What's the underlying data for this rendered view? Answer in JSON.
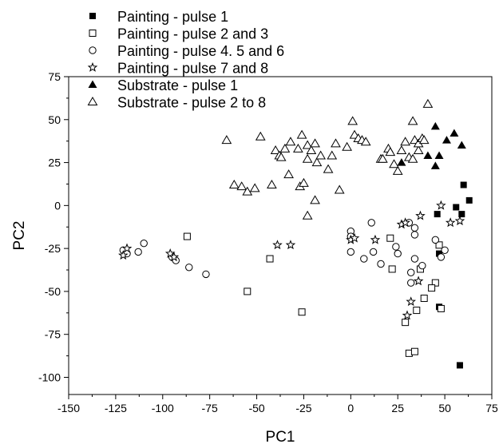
{
  "chart_data": {
    "type": "scatter",
    "title": "",
    "xlabel": "PC1",
    "ylabel": "PC2",
    "xlim": [
      -150,
      75
    ],
    "ylim": [
      -110,
      75
    ],
    "xticks": [
      -150,
      -125,
      -100,
      -75,
      -50,
      -25,
      0,
      25,
      50,
      75
    ],
    "yticks": [
      75,
      50,
      25,
      0,
      -25,
      -50,
      -75,
      -100
    ],
    "grid": false,
    "legend_position": "top-left",
    "series": [
      {
        "name": "Painting - pulse 1",
        "marker": "filled-square",
        "color": "#000000",
        "points": [
          [
            60,
            12
          ],
          [
            63,
            3
          ],
          [
            56,
            -1
          ],
          [
            59,
            -5
          ],
          [
            46,
            -5
          ],
          [
            47,
            -28
          ],
          [
            47,
            -59
          ],
          [
            58,
            -93
          ]
        ]
      },
      {
        "name": "Painting - pulse 2 and 3",
        "marker": "open-square",
        "color": "#000000",
        "points": [
          [
            -87,
            -18
          ],
          [
            -43,
            -31
          ],
          [
            -55,
            -50
          ],
          [
            -26,
            -62
          ],
          [
            21,
            -19
          ],
          [
            22,
            -37
          ],
          [
            29,
            -68
          ],
          [
            31,
            -86
          ],
          [
            34,
            -85
          ],
          [
            35,
            -61
          ],
          [
            37,
            -37
          ],
          [
            39,
            -54
          ],
          [
            45,
            -45
          ],
          [
            43,
            -48
          ],
          [
            48,
            -60
          ],
          [
            47,
            -23
          ]
        ]
      },
      {
        "name": "Painting - pulse 4. 5 and 6",
        "marker": "open-circle",
        "color": "#000000",
        "points": [
          [
            -121,
            -26
          ],
          [
            -119,
            -28
          ],
          [
            -110,
            -22
          ],
          [
            -113,
            -27
          ],
          [
            -95,
            -30
          ],
          [
            -93,
            -32
          ],
          [
            -86,
            -36
          ],
          [
            -77,
            -40
          ],
          [
            0,
            -15
          ],
          [
            0,
            -18
          ],
          [
            0,
            -27
          ],
          [
            7,
            -31
          ],
          [
            12,
            -27
          ],
          [
            16,
            -34
          ],
          [
            24,
            -24
          ],
          [
            25,
            -28
          ],
          [
            31,
            -10
          ],
          [
            32,
            -39
          ],
          [
            32,
            -45
          ],
          [
            34,
            -13
          ],
          [
            34,
            -17
          ],
          [
            34,
            -31
          ],
          [
            38,
            -35
          ],
          [
            45,
            -20
          ],
          [
            48,
            -30
          ],
          [
            50,
            -26
          ],
          [
            11,
            -10
          ]
        ]
      },
      {
        "name": "Painting - pulse 7 and 8",
        "marker": "open-star",
        "color": "#000000",
        "points": [
          [
            -121,
            -29
          ],
          [
            -119,
            -25
          ],
          [
            -96,
            -28
          ],
          [
            -94,
            -30
          ],
          [
            -39,
            -23
          ],
          [
            -32,
            -23
          ],
          [
            0,
            -20
          ],
          [
            2,
            -19
          ],
          [
            13,
            -20
          ],
          [
            27,
            -11
          ],
          [
            29,
            -10
          ],
          [
            30,
            -64
          ],
          [
            32,
            -56
          ],
          [
            36,
            -44
          ],
          [
            37,
            -6
          ],
          [
            48,
            0
          ],
          [
            53,
            -10
          ],
          [
            58,
            -9
          ]
        ]
      },
      {
        "name": "Substrate - pulse 1",
        "marker": "filled-triangle",
        "color": "#000000",
        "points": [
          [
            27,
            25
          ],
          [
            41,
            29
          ],
          [
            45,
            46
          ],
          [
            47,
            29
          ],
          [
            51,
            38
          ],
          [
            55,
            42
          ],
          [
            59,
            35
          ],
          [
            45,
            23
          ]
        ]
      },
      {
        "name": "Substrate - pulse 2 to 8",
        "marker": "open-triangle",
        "color": "#000000",
        "points": [
          [
            -66,
            38
          ],
          [
            -62,
            12
          ],
          [
            -58,
            11
          ],
          [
            -55,
            8
          ],
          [
            -51,
            10
          ],
          [
            -48,
            40
          ],
          [
            -42,
            12
          ],
          [
            -40,
            32
          ],
          [
            -38,
            29
          ],
          [
            -37,
            28
          ],
          [
            -35,
            33
          ],
          [
            -33,
            18
          ],
          [
            -32,
            37
          ],
          [
            -28,
            33
          ],
          [
            -26,
            41
          ],
          [
            -23,
            35
          ],
          [
            -23,
            27
          ],
          [
            -21,
            32
          ],
          [
            -19,
            36
          ],
          [
            -18,
            25
          ],
          [
            -16,
            29
          ],
          [
            -12,
            21
          ],
          [
            -10,
            29
          ],
          [
            -27,
            11
          ],
          [
            -25,
            13
          ],
          [
            -23,
            -6
          ],
          [
            -19,
            3
          ],
          [
            -8,
            36
          ],
          [
            -6,
            9
          ],
          [
            -2,
            34
          ],
          [
            1,
            49
          ],
          [
            2,
            41
          ],
          [
            4,
            39
          ],
          [
            6,
            38
          ],
          [
            8,
            37
          ],
          [
            16,
            27
          ],
          [
            20,
            33
          ],
          [
            21,
            31
          ],
          [
            23,
            24
          ],
          [
            25,
            20
          ],
          [
            27,
            32
          ],
          [
            29,
            37
          ],
          [
            31,
            28
          ],
          [
            33,
            27
          ],
          [
            33,
            49
          ],
          [
            34,
            38
          ],
          [
            36,
            32
          ],
          [
            36,
            36
          ],
          [
            38,
            39
          ],
          [
            39,
            38
          ],
          [
            41,
            59
          ],
          [
            17,
            27
          ]
        ]
      }
    ]
  }
}
